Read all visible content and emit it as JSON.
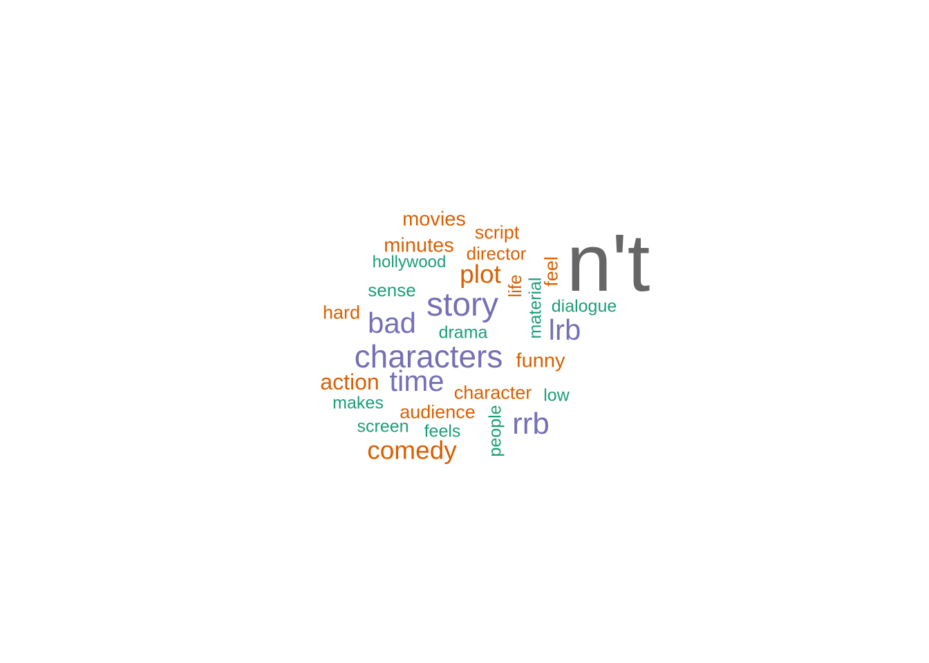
{
  "colors": {
    "gray": "#666666",
    "purple": "#7570b3",
    "orange": "#d95f02",
    "teal": "#1b9e77"
  },
  "words": [
    {
      "text": "n't",
      "color": "gray",
      "rotated": false
    },
    {
      "text": "story",
      "color": "purple",
      "rotated": false
    },
    {
      "text": "characters",
      "color": "purple",
      "rotated": false
    },
    {
      "text": "bad",
      "color": "purple",
      "rotated": false
    },
    {
      "text": "time",
      "color": "purple",
      "rotated": false
    },
    {
      "text": "rrb",
      "color": "purple",
      "rotated": false
    },
    {
      "text": "lrb",
      "color": "purple",
      "rotated": false
    },
    {
      "text": "comedy",
      "color": "orange",
      "rotated": false
    },
    {
      "text": "plot",
      "color": "orange",
      "rotated": false
    },
    {
      "text": "action",
      "color": "orange",
      "rotated": false
    },
    {
      "text": "movies",
      "color": "orange",
      "rotated": false
    },
    {
      "text": "minutes",
      "color": "orange",
      "rotated": false
    },
    {
      "text": "script",
      "color": "orange",
      "rotated": false
    },
    {
      "text": "director",
      "color": "orange",
      "rotated": false
    },
    {
      "text": "hard",
      "color": "orange",
      "rotated": false
    },
    {
      "text": "funny",
      "color": "orange",
      "rotated": false
    },
    {
      "text": "character",
      "color": "orange",
      "rotated": false
    },
    {
      "text": "audience",
      "color": "orange",
      "rotated": false
    },
    {
      "text": "feel",
      "color": "orange",
      "rotated": true
    },
    {
      "text": "life",
      "color": "orange",
      "rotated": true
    },
    {
      "text": "hollywood",
      "color": "teal",
      "rotated": false
    },
    {
      "text": "sense",
      "color": "teal",
      "rotated": false
    },
    {
      "text": "drama",
      "color": "teal",
      "rotated": false
    },
    {
      "text": "dialogue",
      "color": "teal",
      "rotated": false
    },
    {
      "text": "makes",
      "color": "teal",
      "rotated": false
    },
    {
      "text": "screen",
      "color": "teal",
      "rotated": false
    },
    {
      "text": "feels",
      "color": "teal",
      "rotated": false
    },
    {
      "text": "low",
      "color": "teal",
      "rotated": false
    },
    {
      "text": "material",
      "color": "teal",
      "rotated": true
    },
    {
      "text": "people",
      "color": "teal",
      "rotated": true
    }
  ]
}
